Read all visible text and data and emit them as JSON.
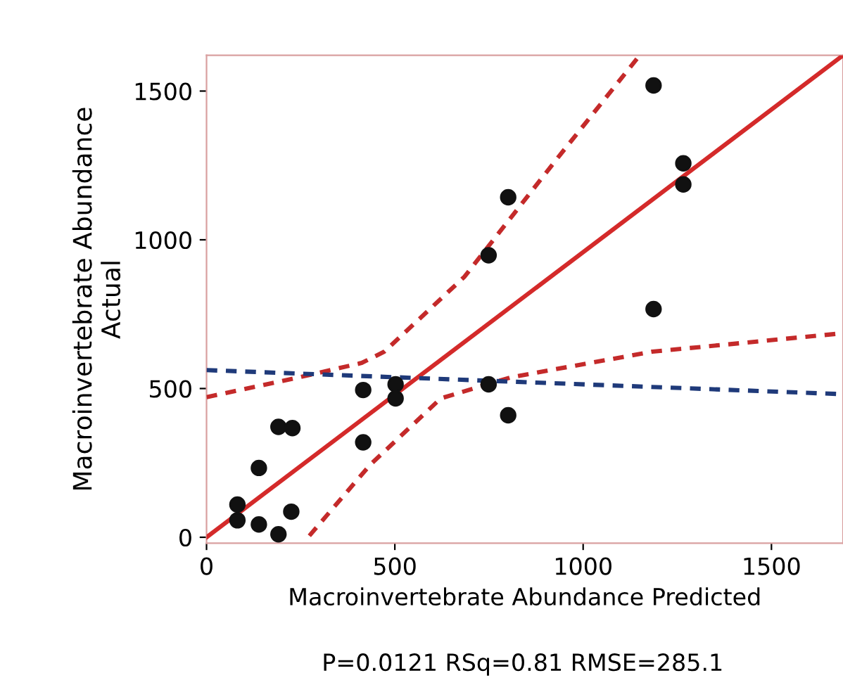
{
  "chart_data": {
    "type": "scatter",
    "xlabel": "Macroinvertebrate Abundance Predicted",
    "ylabel": "Macroinvertebrate Abundance\nActual",
    "annotations": [
      "P=0.0121 RSq=0.81 RMSE=285.1"
    ],
    "xlim": [
      0,
      1690
    ],
    "ylim": [
      -20,
      1620
    ],
    "xticks": [
      0,
      500,
      1000,
      1500
    ],
    "yticks": [
      0,
      500,
      1000,
      1500
    ],
    "grid": false,
    "legend": false,
    "series": [
      {
        "color": "#111111",
        "marker": "circle",
        "x": [
          82,
          82,
          139,
          139,
          191,
          191,
          228,
          225,
          416,
          416,
          502,
          502,
          749,
          801,
          749,
          801,
          1187,
          1187,
          1266,
          1266
        ],
        "values": [
          110,
          57,
          233,
          43,
          10,
          371,
          367,
          86,
          495,
          319,
          514,
          467,
          948,
          1143,
          514,
          410,
          1519,
          767,
          1257,
          1186
        ]
      },
      {
        "type": "line",
        "color": "#d42a2a",
        "line_style": "solid",
        "marker": "none",
        "x": [
          0,
          1690
        ],
        "values": [
          0,
          1620
        ]
      },
      {
        "type": "line",
        "color": "#c42a2a",
        "line_style": "dashed",
        "marker": "none",
        "x": [
          0,
          247,
          412,
          472,
          685,
          936,
          1150
        ],
        "values": [
          471,
          538,
          586,
          624,
          876,
          1281,
          1620
        ]
      },
      {
        "type": "line",
        "color": "#c42a2a",
        "line_style": "dashed",
        "marker": "none",
        "x": [
          273,
          434,
          622,
          809,
          1184,
          1690
        ],
        "values": [
          5,
          243,
          467,
          538,
          624,
          686
        ]
      },
      {
        "type": "line",
        "color": "#1f3a7a",
        "line_style": "dashed",
        "marker": "none",
        "x": [
          0,
          1690
        ],
        "values": [
          562,
          481
        ]
      }
    ]
  }
}
